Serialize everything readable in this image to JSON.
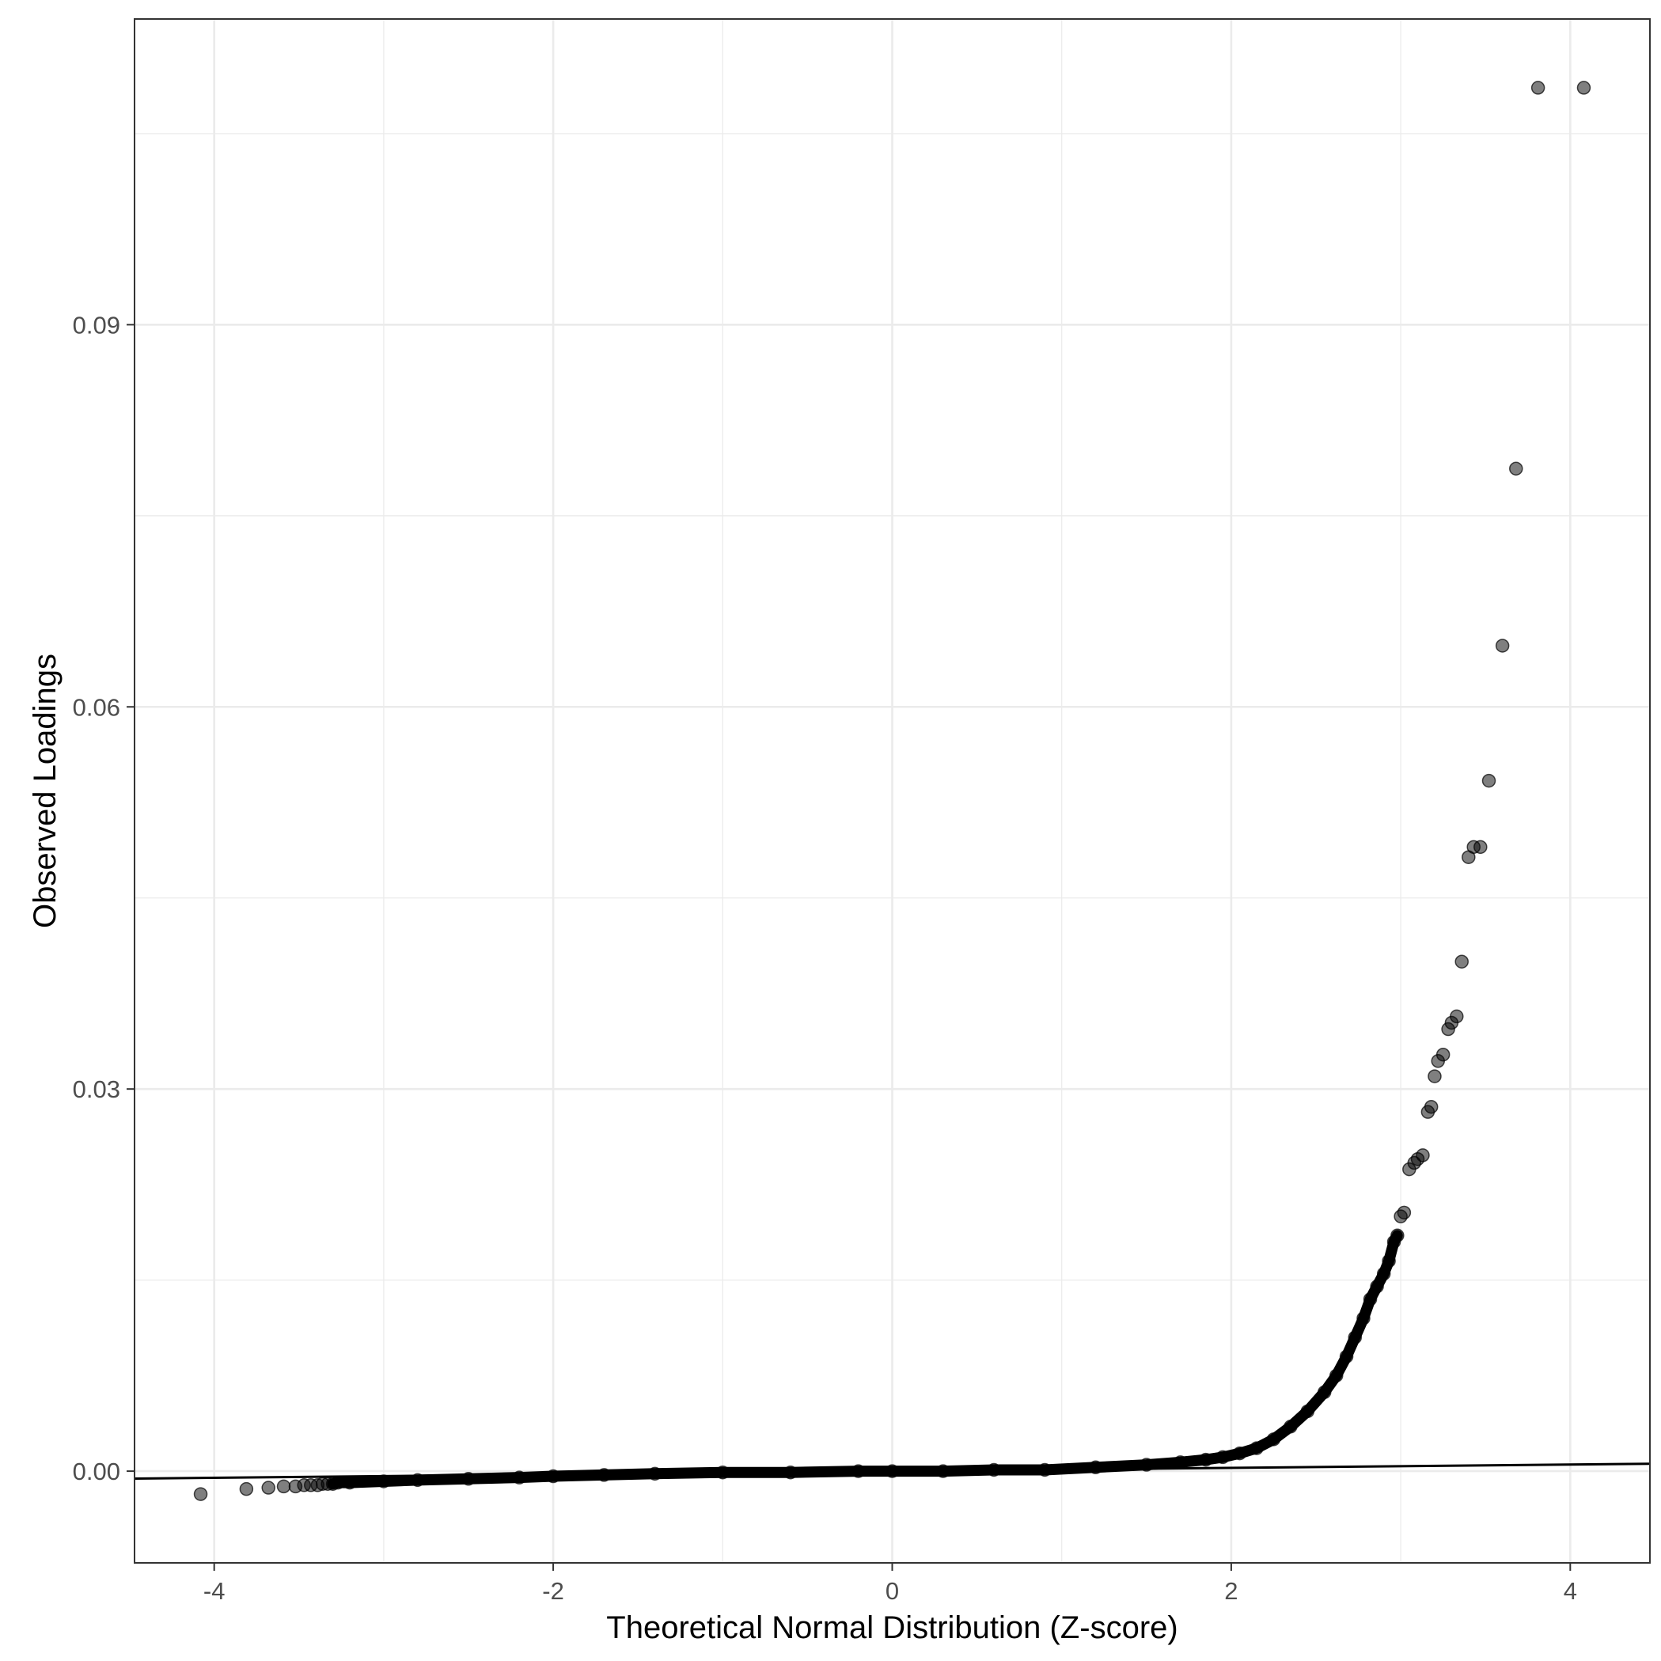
{
  "chart_data": {
    "type": "scatter",
    "title": "",
    "xlabel": "Theoretical Normal Distribution (Z-score)",
    "ylabel": "Observed Loadings",
    "xlim": [
      -4.47,
      4.47
    ],
    "ylim": [
      -0.0072,
      0.114
    ],
    "x_ticks": [
      -4,
      -2,
      0,
      2,
      4
    ],
    "x_tick_labels": [
      "-4",
      "-2",
      "0",
      "2",
      "4"
    ],
    "y_ticks": [
      0.0,
      0.03,
      0.06,
      0.09
    ],
    "y_tick_labels": [
      "0.00",
      "0.03",
      "0.06",
      "0.09"
    ],
    "grid": true,
    "colors": {
      "points": "#000000",
      "line": "#000000",
      "grid": "#ebebeb",
      "panel_border": "#333333"
    },
    "reference_line": {
      "intercept": 0.0,
      "slope": 0.00013
    },
    "points_described": "Q-Q plot of loadings; bulk of points follow a curve rising sharply above z=2",
    "series": [
      {
        "x": [
          -4.08,
          -3.81,
          -3.68,
          -3.59,
          -3.52,
          -3.47,
          -3.43,
          -3.39,
          -3.36,
          -3.33,
          -3.3,
          -3.27,
          -3.2,
          -3.0,
          -2.8,
          -2.5,
          -2.2,
          -2.0,
          -1.7,
          -1.4,
          -1.0,
          -0.6,
          -0.2,
          0.0,
          0.3,
          0.6,
          0.9,
          1.2,
          1.5,
          1.7,
          1.85,
          1.95,
          2.05,
          2.15,
          2.25,
          2.35,
          2.45,
          2.55,
          2.62,
          2.68,
          2.73,
          2.78,
          2.82,
          2.86,
          2.9,
          2.93,
          2.96,
          2.98,
          3.0,
          3.02,
          3.05,
          3.08,
          3.1,
          3.13,
          3.16,
          3.18,
          3.2,
          3.22,
          3.25,
          3.28,
          3.3,
          3.33,
          3.36,
          3.4,
          3.43,
          3.47,
          3.52,
          3.6,
          3.68,
          3.81,
          4.08
        ],
        "y": [
          -0.0018,
          -0.0014,
          -0.0013,
          -0.0012,
          -0.0012,
          -0.0011,
          -0.0011,
          -0.0011,
          -0.001,
          -0.001,
          -0.001,
          -0.0009,
          -0.0009,
          -0.0008,
          -0.0007,
          -0.0006,
          -0.0005,
          -0.0004,
          -0.0003,
          -0.0002,
          -0.0001,
          -0.0001,
          0.0,
          0.0,
          0.0,
          0.0001,
          0.0001,
          0.0003,
          0.0005,
          0.0007,
          0.0009,
          0.0011,
          0.0014,
          0.0018,
          0.0025,
          0.0035,
          0.0047,
          0.0062,
          0.0075,
          0.009,
          0.0105,
          0.012,
          0.0135,
          0.0145,
          0.0155,
          0.0165,
          0.018,
          0.0185,
          0.02,
          0.0203,
          0.0237,
          0.0242,
          0.0245,
          0.0248,
          0.0282,
          0.0286,
          0.031,
          0.0322,
          0.0327,
          0.0347,
          0.0352,
          0.0357,
          0.04,
          0.0482,
          0.049,
          0.049,
          0.0542,
          0.0648,
          0.0787,
          0.1086,
          0.1086
        ]
      }
    ]
  }
}
